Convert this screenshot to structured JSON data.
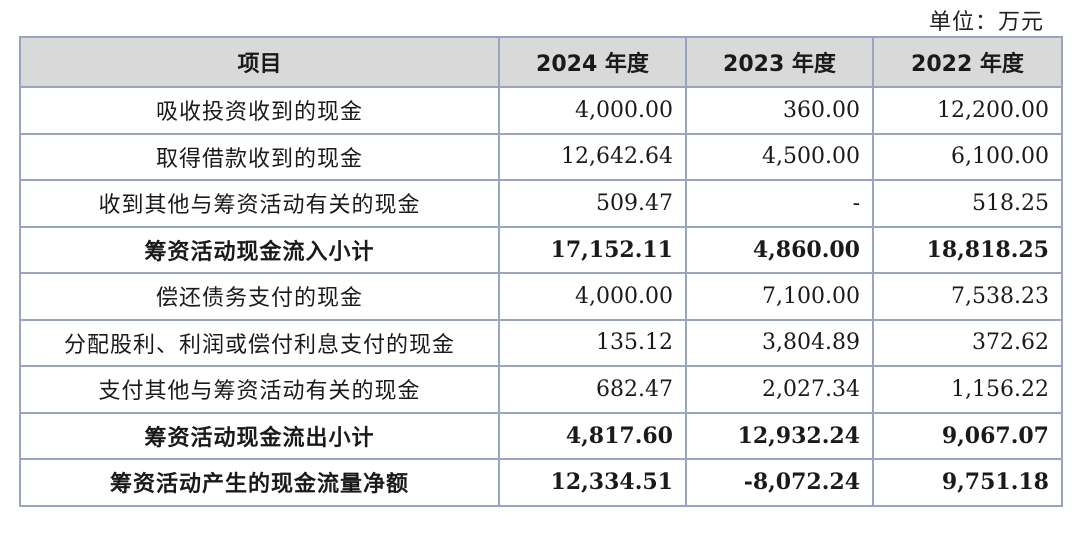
{
  "unit": "单位：万元",
  "headers": [
    "项目",
    "2024 年度",
    "2023 年度",
    "2022 年度"
  ],
  "rows": [
    {
      "item": "吸收投资收到的现金",
      "y2024": "4,000.00",
      "y2023": "360.00",
      "y2022": "12,200.00",
      "bold": false
    },
    {
      "item": "取得借款收到的现金",
      "y2024": "12,642.64",
      "y2023": "4,500.00",
      "y2022": "6,100.00",
      "bold": false
    },
    {
      "item": "收到其他与筹资活动有关的现金",
      "y2024": "509.47",
      "y2023": "-",
      "y2022": "518.25",
      "bold": false
    },
    {
      "item": "筹资活动现金流入小计",
      "y2024": "17,152.11",
      "y2023": "4,860.00",
      "y2022": "18,818.25",
      "bold": true
    },
    {
      "item": "偿还债务支付的现金",
      "y2024": "4,000.00",
      "y2023": "7,100.00",
      "y2022": "7,538.23",
      "bold": false
    },
    {
      "item": "分配股利、利润或偿付利息支付的现金",
      "y2024": "135.12",
      "y2023": "3,804.89",
      "y2022": "372.62",
      "bold": false
    },
    {
      "item": "支付其他与筹资活动有关的现金",
      "y2024": "682.47",
      "y2023": "2,027.34",
      "y2022": "1,156.22",
      "bold": false
    },
    {
      "item": "筹资活动现金流出小计",
      "y2024": "4,817.60",
      "y2023": "12,932.24",
      "y2022": "9,067.07",
      "bold": true
    },
    {
      "item": "筹资活动产生的现金流量净额",
      "y2024": "12,334.51",
      "y2023": "-8,072.24",
      "y2022": "9,751.18",
      "bold": true
    }
  ]
}
